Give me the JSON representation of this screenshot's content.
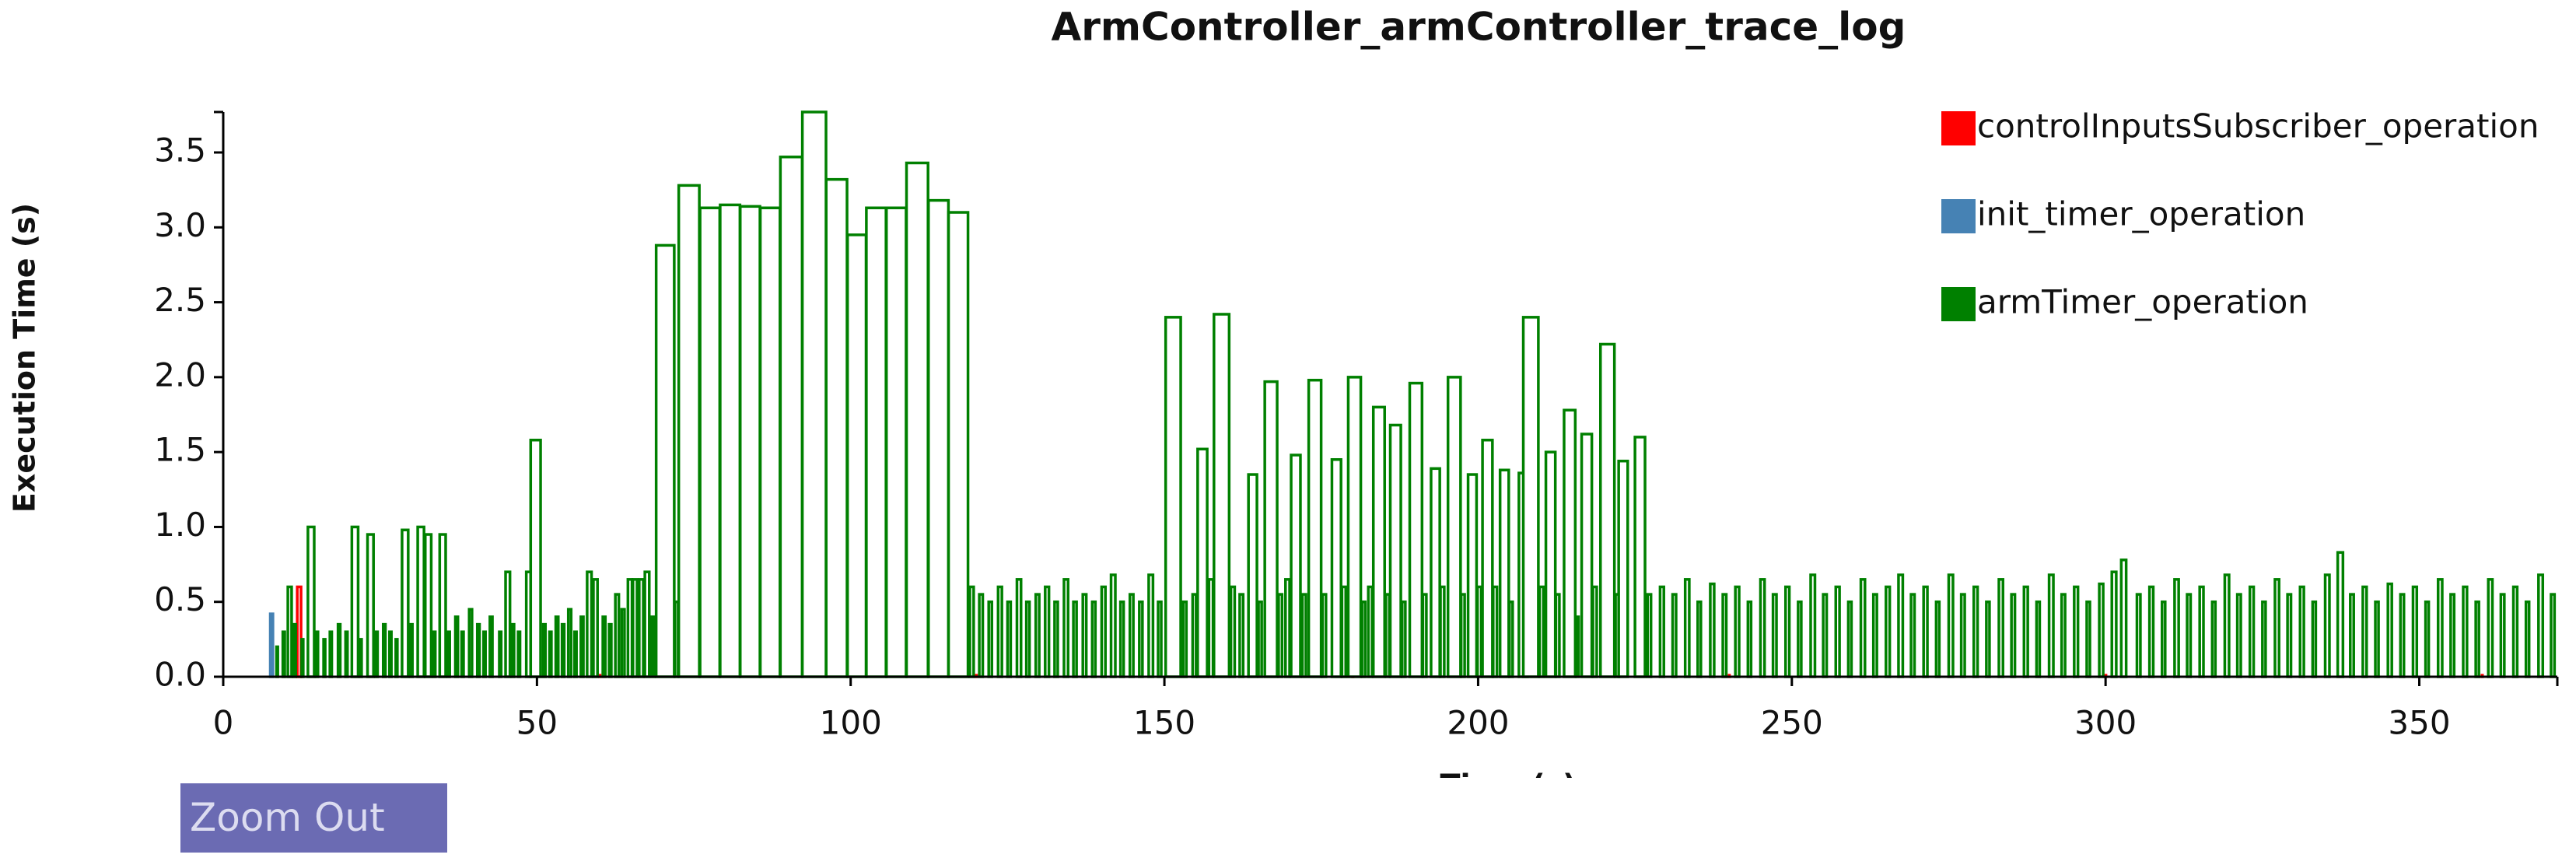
{
  "chart_data": {
    "type": "bar",
    "title": "ArmController_armController_trace_log",
    "x_label": "Time (s)",
    "y_label": "Execution Time (s)",
    "xlim": [
      0,
      372
    ],
    "ylim": [
      0,
      3.77
    ],
    "xticks": [
      0,
      50,
      100,
      150,
      200,
      250,
      300,
      350
    ],
    "yticks": [
      {
        "value": 0,
        "label": "0.0"
      },
      0.5,
      {
        "value": 1,
        "label": "1.0"
      },
      1.5,
      {
        "value": 2,
        "label": "2.0"
      },
      2.5,
      {
        "value": 3,
        "label": "3.0"
      },
      3.5
    ],
    "legend": "top-right",
    "grid": false,
    "series": [
      {
        "name": "controlInputsSubscriber_operation",
        "color": "#ff0000",
        "x": [
          11.8,
          60,
          120,
          180,
          240,
          300,
          360
        ],
        "values": [
          0.6,
          0.01,
          0.01,
          0.01,
          0.01,
          0.01,
          0.01
        ]
      },
      {
        "name": "init_timer_operation",
        "color": "#4682b4",
        "x": [
          7.5
        ],
        "values": [
          0.42
        ]
      },
      {
        "name": "armTimer_operation",
        "color": "#008000",
        "x": [
          8.5,
          9.5,
          10.3,
          11.2,
          12.5,
          13.5,
          14.8,
          16,
          17,
          18.3,
          19.5,
          20.5,
          21.8,
          23,
          24.3,
          25.5,
          26.5,
          27.5,
          28.5,
          29.8,
          31,
          32.2,
          33.5,
          34.5,
          35.8,
          37,
          38,
          39.2,
          40.5,
          41.5,
          42.5,
          44,
          45,
          46,
          47,
          48.3,
          49,
          51,
          52,
          53,
          54,
          55,
          56,
          57,
          58,
          59,
          60.5,
          61.5,
          62.5,
          63.5,
          64.5,
          65.3,
          66.3,
          67.2,
          68.3,
          69,
          72,
          72.6,
          76,
          79.2,
          82.4,
          85.6,
          88.8,
          92.3,
          96.1,
          99.5,
          102.5,
          105.7,
          108.9,
          112.4,
          115.6,
          119,
          120.5,
          122,
          123.5,
          125,
          126.5,
          128,
          129.5,
          131,
          132.5,
          134,
          135.5,
          137,
          138.5,
          140,
          141.5,
          143,
          144.5,
          146,
          147.5,
          149,
          150.2,
          153,
          154.5,
          155.3,
          157.1,
          157.9,
          160.6,
          162,
          163.4,
          165,
          166,
          168.2,
          169.3,
          170.2,
          172,
          173,
          175.2,
          176.7,
          178.3,
          179.3,
          181.5,
          182.5,
          183.3,
          185.3,
          186,
          187.9,
          189.1,
          191.2,
          192.5,
          194,
          195.2,
          197.3,
          198.4,
          199.9,
          200.7,
          202.4,
          203.5,
          205,
          206.5,
          207.2,
          209.8,
          210.8,
          212.4,
          213.7,
          215.6,
          216.5,
          218.3,
          219.5,
          221.9,
          222.4,
          225,
          227,
          229,
          231,
          233,
          235,
          237,
          239,
          241,
          243,
          245,
          247,
          249,
          251,
          253,
          255,
          257,
          259,
          261,
          263,
          265,
          267,
          269,
          271,
          273,
          275,
          277,
          279,
          281,
          283,
          285,
          287,
          289,
          291,
          293,
          295,
          297,
          299,
          301,
          302.5,
          305,
          307,
          309,
          311,
          313,
          315,
          317,
          319,
          321,
          323,
          325,
          327,
          329,
          331,
          333,
          335,
          337,
          339,
          341,
          343,
          345,
          347,
          349,
          351,
          353,
          355,
          357,
          359,
          361,
          363,
          365,
          367,
          369,
          371
        ],
        "values": [
          0.2,
          0.3,
          0.6,
          0.35,
          0.25,
          1.0,
          0.3,
          0.25,
          0.3,
          0.35,
          0.3,
          1.0,
          0.25,
          0.95,
          0.3,
          0.35,
          0.3,
          0.25,
          0.98,
          0.35,
          1.0,
          0.95,
          0.3,
          0.95,
          0.3,
          0.4,
          0.3,
          0.45,
          0.35,
          0.3,
          0.4,
          0.3,
          0.7,
          0.35,
          0.3,
          0.7,
          1.58,
          0.35,
          0.3,
          0.4,
          0.35,
          0.45,
          0.3,
          0.4,
          0.7,
          0.65,
          0.4,
          0.35,
          0.55,
          0.45,
          0.65,
          0.65,
          0.65,
          0.7,
          0.4,
          2.88,
          0.5,
          3.28,
          3.13,
          3.15,
          3.14,
          3.13,
          3.47,
          3.77,
          3.32,
          2.95,
          3.13,
          3.13,
          3.43,
          3.18,
          3.1,
          0.6,
          0.55,
          0.5,
          0.6,
          0.5,
          0.65,
          0.5,
          0.55,
          0.6,
          0.5,
          0.65,
          0.5,
          0.55,
          0.5,
          0.6,
          0.68,
          0.5,
          0.55,
          0.5,
          0.68,
          0.5,
          2.4,
          0.5,
          0.55,
          1.52,
          0.65,
          2.42,
          0.6,
          0.55,
          1.35,
          0.5,
          1.97,
          0.55,
          0.65,
          1.48,
          0.55,
          1.98,
          0.55,
          1.45,
          0.6,
          2.0,
          0.5,
          0.6,
          1.8,
          0.55,
          1.68,
          0.5,
          1.96,
          0.55,
          1.39,
          0.6,
          2.0,
          0.55,
          1.35,
          0.6,
          1.58,
          0.6,
          1.38,
          0.5,
          1.36,
          2.4,
          0.6,
          1.5,
          0.55,
          1.78,
          0.4,
          1.62,
          0.6,
          2.22,
          0.55,
          1.44,
          1.6,
          0.55,
          0.6,
          0.55,
          0.65,
          0.5,
          0.62,
          0.55,
          0.6,
          0.5,
          0.65,
          0.55,
          0.6,
          0.5,
          0.68,
          0.55,
          0.6,
          0.5,
          0.65,
          0.55,
          0.6,
          0.68,
          0.55,
          0.6,
          0.5,
          0.68,
          0.55,
          0.6,
          0.5,
          0.65,
          0.55,
          0.6,
          0.5,
          0.68,
          0.55,
          0.6,
          0.5,
          0.62,
          0.7,
          0.78,
          0.55,
          0.6,
          0.5,
          0.65,
          0.55,
          0.6,
          0.5,
          0.68,
          0.55,
          0.6,
          0.5,
          0.65,
          0.55,
          0.6,
          0.5,
          0.68,
          0.83,
          0.55,
          0.6,
          0.5,
          0.62,
          0.55,
          0.6,
          0.5,
          0.65,
          0.55,
          0.6,
          0.5,
          0.65,
          0.55,
          0.6,
          0.5,
          0.68,
          0.55
        ]
      }
    ]
  },
  "controls": {
    "zoom_button": "Zoom Out"
  }
}
